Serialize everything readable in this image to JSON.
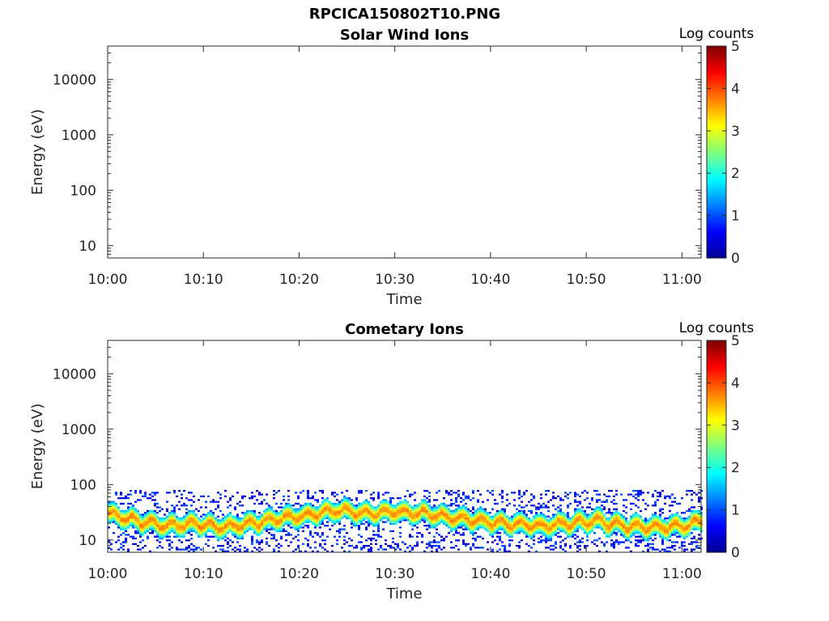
{
  "figure": {
    "title": "RPCICA150802T10.PNG"
  },
  "colorbar": {
    "colors": [
      "#00008f",
      "#0000ff",
      "#007fff",
      "#00ffff",
      "#7fff7f",
      "#ffff00",
      "#ff7f00",
      "#ff0000",
      "#7f0000"
    ]
  },
  "chart_data": [
    {
      "type": "heatmap",
      "title": "Solar Wind Ions",
      "xlabel": "Time",
      "ylabel": "Energy (eV)",
      "x_ticks": [
        "10:00",
        "10:10",
        "10:20",
        "10:30",
        "10:40",
        "10:50",
        "11:00"
      ],
      "y_ticks": [
        "10",
        "100",
        "1000",
        "10000"
      ],
      "y_scale": "log",
      "ylim": [
        6,
        40000
      ],
      "xlim": [
        "10:00",
        "11:02"
      ],
      "colorbar": {
        "label": "Log counts",
        "range": [
          0,
          5
        ],
        "ticks": [
          "0",
          "1",
          "2",
          "3",
          "4",
          "5"
        ]
      },
      "data": []
    },
    {
      "type": "heatmap",
      "title": "Cometary Ions",
      "xlabel": "Time",
      "ylabel": "Energy (eV)",
      "x_ticks": [
        "10:00",
        "10:10",
        "10:20",
        "10:30",
        "10:40",
        "10:50",
        "11:00"
      ],
      "y_ticks": [
        "10",
        "100",
        "1000",
        "10000"
      ],
      "y_scale": "log",
      "ylim": [
        6,
        40000
      ],
      "xlim": [
        "10:00",
        "11:02"
      ],
      "colorbar": {
        "label": "Log counts",
        "range": [
          0,
          5
        ],
        "ticks": [
          "0",
          "1",
          "2",
          "3",
          "4",
          "5"
        ]
      },
      "band": {
        "energy_range": [
          6,
          80
        ],
        "peak_log_counts": 3.7,
        "peak_energy": [
          {
            "time": "10:00",
            "energy": 30
          },
          {
            "time": "10:03",
            "energy": 22
          },
          {
            "time": "10:06",
            "energy": 18
          },
          {
            "time": "10:09",
            "energy": 20
          },
          {
            "time": "10:12",
            "energy": 17
          },
          {
            "time": "10:15",
            "energy": 20
          },
          {
            "time": "10:18",
            "energy": 25
          },
          {
            "time": "10:21",
            "energy": 28
          },
          {
            "time": "10:24",
            "energy": 35
          },
          {
            "time": "10:27",
            "energy": 30
          },
          {
            "time": "10:30",
            "energy": 32
          },
          {
            "time": "10:33",
            "energy": 30
          },
          {
            "time": "10:36",
            "energy": 25
          },
          {
            "time": "10:39",
            "energy": 22
          },
          {
            "time": "10:42",
            "energy": 20
          },
          {
            "time": "10:45",
            "energy": 18
          },
          {
            "time": "10:48",
            "energy": 20
          },
          {
            "time": "10:51",
            "energy": 22
          },
          {
            "time": "10:54",
            "energy": 18
          },
          {
            "time": "10:57",
            "energy": 17
          },
          {
            "time": "11:00",
            "energy": 18
          },
          {
            "time": "11:02",
            "energy": 22
          }
        ]
      }
    }
  ]
}
